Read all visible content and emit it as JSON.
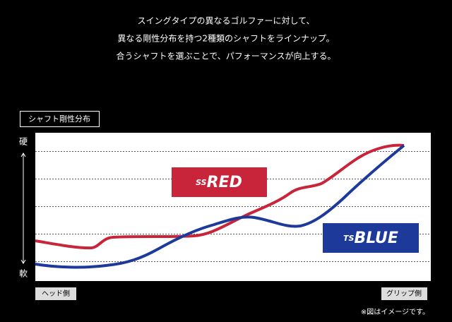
{
  "header": {
    "lines": [
      "スイングタイプの異なるゴルファーに対して、",
      "異なる剛性分布を持つ2種類のシャフトをラインナップ。",
      "合うシャフトを選ぶことで、パフォーマンスが向上する。"
    ]
  },
  "figure": {
    "title": "シャフト剛性分布",
    "axis_top": "硬",
    "axis_bottom": "軟",
    "left_label": "ヘッド側",
    "right_label": "グリップ側",
    "logos": [
      {
        "prefix": "SS",
        "name": "RED"
      },
      {
        "prefix": "TS",
        "name": "BLUE"
      }
    ],
    "note": "※図はイメージです。"
  }
}
